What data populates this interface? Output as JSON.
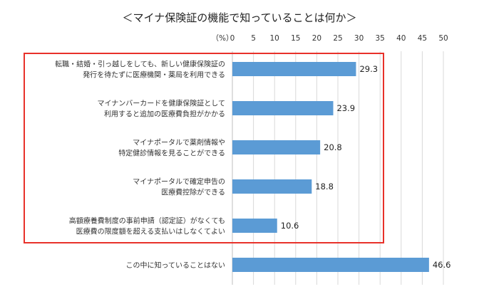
{
  "chart_data": {
    "type": "bar",
    "orientation": "horizontal",
    "title": "＜マイナ保険証の機能で知っていることは何か＞",
    "unit_label": "（%）",
    "xlim": [
      0,
      50
    ],
    "ticks": [
      "0",
      "5",
      "10",
      "15",
      "20",
      "25",
      "30",
      "35",
      "40",
      "45",
      "50"
    ],
    "grid": true,
    "bar_color": "#5b9bd5",
    "highlight_color": "#e8312a",
    "highlight_count": 5,
    "categories": [
      [
        "転職・結婚・引っ越しをしても、新しい健康保険証の",
        "発行を待たずに医療機関・薬局を利用できる"
      ],
      [
        "マイナンバーカードを健康保険証として",
        "利用すると追加の医療費負担がかかる"
      ],
      [
        "マイナポータルで薬剤情報や",
        "特定健診情報を見ることができる"
      ],
      [
        "マイナポータルで確定申告の",
        "医療費控除ができる"
      ],
      [
        "高額療養費制度の事前申請（認定証）がなくても",
        "医療費の限度額を超える支払いはしなくてよい"
      ],
      [
        "この中に知っていることはない"
      ]
    ],
    "values": [
      29.3,
      23.9,
      20.8,
      18.8,
      10.6,
      46.6
    ],
    "value_labels": [
      "29.3",
      "23.9",
      "20.8",
      "18.8",
      "10.6",
      "46.6"
    ]
  }
}
